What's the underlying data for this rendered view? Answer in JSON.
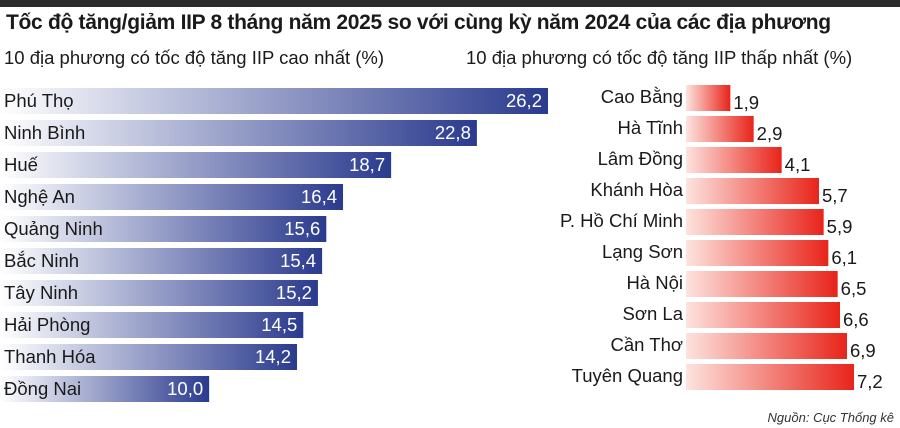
{
  "title": "Tốc độ tăng/giảm IIP 8 tháng năm 2025 so với cùng kỳ năm 2024 của các địa phương",
  "source": "Nguồn: Cục Thống kê",
  "colors": {
    "left_bar_start": "#ffffff",
    "left_bar_end": "#2a3a8e",
    "right_bar_start": "#fde3de",
    "right_bar_end": "#e8241a",
    "top_rule": "#2b2b2b"
  },
  "chart_data": [
    {
      "type": "bar",
      "orientation": "horizontal",
      "title": "10 địa phương có tốc độ tăng IIP cao nhất (%)",
      "categories": [
        "Phú Thọ",
        "Ninh Bình",
        "Huế",
        "Nghệ An",
        "Quảng Ninh",
        "Bắc Ninh",
        "Tây Ninh",
        "Hải Phòng",
        "Thanh Hóa",
        "Đồng Nai"
      ],
      "values": [
        26.2,
        22.8,
        18.7,
        16.4,
        15.6,
        15.4,
        15.2,
        14.5,
        14.2,
        10.0
      ],
      "value_labels": [
        "26,2",
        "22,8",
        "18,7",
        "16,4",
        "15,6",
        "15,4",
        "15,2",
        "14,5",
        "14,2",
        "10,0"
      ],
      "label_placement": "inside-end"
    },
    {
      "type": "bar",
      "orientation": "horizontal",
      "title": "10 địa phương có tốc độ tăng IIP thấp nhất (%)",
      "categories": [
        "Cao Bằng",
        "Hà Tĩnh",
        "Lâm Đồng",
        "Khánh Hòa",
        "TP. Hồ Chí Minh",
        "Lạng Sơn",
        "Hà Nội",
        "Sơn La",
        "Cần Thơ",
        "Tuyên Quang"
      ],
      "values": [
        1.9,
        2.9,
        4.1,
        5.7,
        5.9,
        6.1,
        6.5,
        6.6,
        6.9,
        7.2
      ],
      "value_labels": [
        "1,9",
        "2,9",
        "4,1",
        "5,7",
        "5,9",
        "6,1",
        "6,5",
        "6,6",
        "6,9",
        "7,2"
      ],
      "label_placement": "outside-end"
    }
  ]
}
